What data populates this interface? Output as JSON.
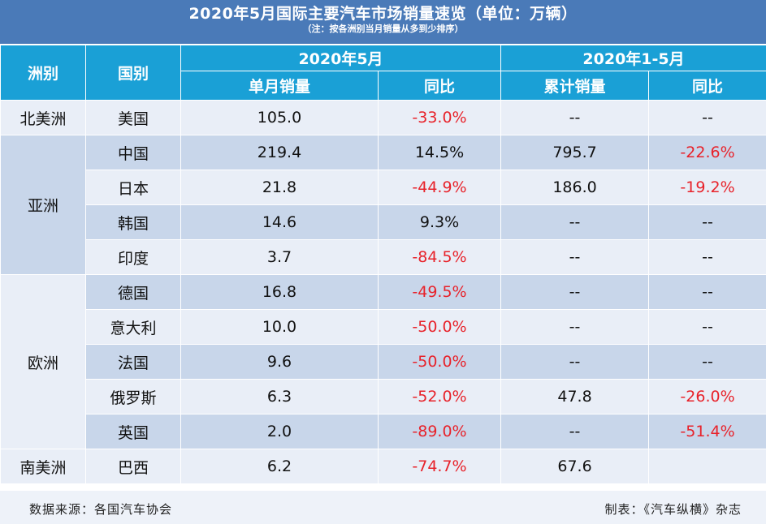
{
  "title": "2020年5月国际主要汽车市场销量速览（单位：万辆）",
  "subtitle": "（注：按各洲别当月销量从多到少排序）",
  "headers": {
    "continent": "洲别",
    "country": "国别",
    "may": "2020年5月",
    "ytd": "2020年1-5月",
    "monthly_sales": "单月销量",
    "yoy": "同比",
    "cumulative_sales": "累计销量",
    "yoy2": "同比"
  },
  "continents": {
    "na": "北美洲",
    "asia": "亚洲",
    "europe": "欧洲",
    "sa": "南美洲"
  },
  "rows": [
    {
      "country": "美国",
      "monthly": "105.0",
      "yoy": "-33.0%",
      "cumulative": "--",
      "cum_yoy": "--"
    },
    {
      "country": "中国",
      "monthly": "219.4",
      "yoy": "14.5%",
      "cumulative": "795.7",
      "cum_yoy": "-22.6%"
    },
    {
      "country": "日本",
      "monthly": "21.8",
      "yoy": "-44.9%",
      "cumulative": "186.0",
      "cum_yoy": "-19.2%"
    },
    {
      "country": "韩国",
      "monthly": "14.6",
      "yoy": "9.3%",
      "cumulative": "--",
      "cum_yoy": "--"
    },
    {
      "country": "印度",
      "monthly": "3.7",
      "yoy": "-84.5%",
      "cumulative": "--",
      "cum_yoy": "--"
    },
    {
      "country": "德国",
      "monthly": "16.8",
      "yoy": "-49.5%",
      "cumulative": "--",
      "cum_yoy": "--"
    },
    {
      "country": "意大利",
      "monthly": "10.0",
      "yoy": "-50.0%",
      "cumulative": "--",
      "cum_yoy": "--"
    },
    {
      "country": "法国",
      "monthly": "9.6",
      "yoy": "-50.0%",
      "cumulative": "--",
      "cum_yoy": "--"
    },
    {
      "country": "俄罗斯",
      "monthly": "6.3",
      "yoy": "-52.0%",
      "cumulative": "47.8",
      "cum_yoy": "-26.0%"
    },
    {
      "country": "英国",
      "monthly": "2.0",
      "yoy": "-89.0%",
      "cumulative": "--",
      "cum_yoy": "-51.4%"
    },
    {
      "country": "巴西",
      "monthly": "6.2",
      "yoy": "-74.7%",
      "cumulative": "67.6",
      "cum_yoy": ""
    }
  ],
  "footer": {
    "source": "数据来源：各国汽车协会",
    "credit": "制表：《汽车纵横》杂志"
  },
  "colors": {
    "title_bg": "#4a7ab8",
    "header_bg": "#1aa0d6",
    "row_light": "#e9eef7",
    "row_dark": "#c8d6ea",
    "negative": "#e8222a"
  }
}
